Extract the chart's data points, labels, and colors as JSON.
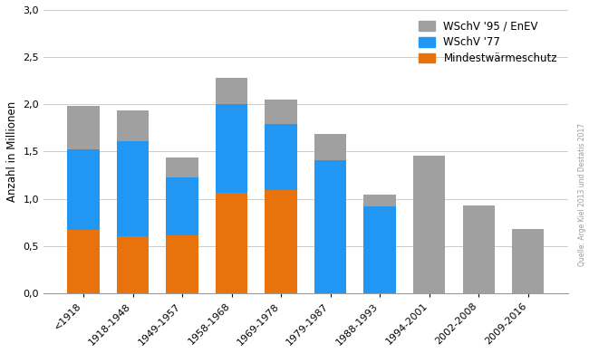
{
  "categories": [
    "<1918",
    "1918-1948",
    "1949-1957",
    "1958-1968",
    "1969-1978",
    "1979-1987",
    "1988-1993",
    "1994-2001",
    "2002-2008",
    "2009-2016"
  ],
  "mindestwarmeschutz": [
    0.67,
    0.6,
    0.61,
    1.06,
    1.09,
    0.0,
    0.0,
    0.0,
    0.0,
    0.0
  ],
  "wschv77": [
    0.85,
    1.01,
    0.62,
    0.94,
    0.7,
    1.41,
    0.92,
    0.0,
    0.0,
    0.0
  ],
  "wschv95": [
    0.46,
    0.33,
    0.21,
    0.28,
    0.26,
    0.28,
    0.12,
    1.46,
    0.93,
    0.68
  ],
  "color_mindest": "#E8720C",
  "color_wschv77": "#2196F3",
  "color_wschv95": "#A0A0A0",
  "ylabel": "Anzahl in Millionen",
  "ylim": [
    0,
    3.0
  ],
  "yticks": [
    0.0,
    0.5,
    1.0,
    1.5,
    2.0,
    2.5,
    3.0
  ],
  "legend_labels": [
    "WSchV '95 / EnEV",
    "WSchV '77",
    "Mindestwärmeschutz"
  ],
  "source_text": "Quelle: Arge Kiel 2013 und Destatis 2017",
  "bar_width": 0.65
}
